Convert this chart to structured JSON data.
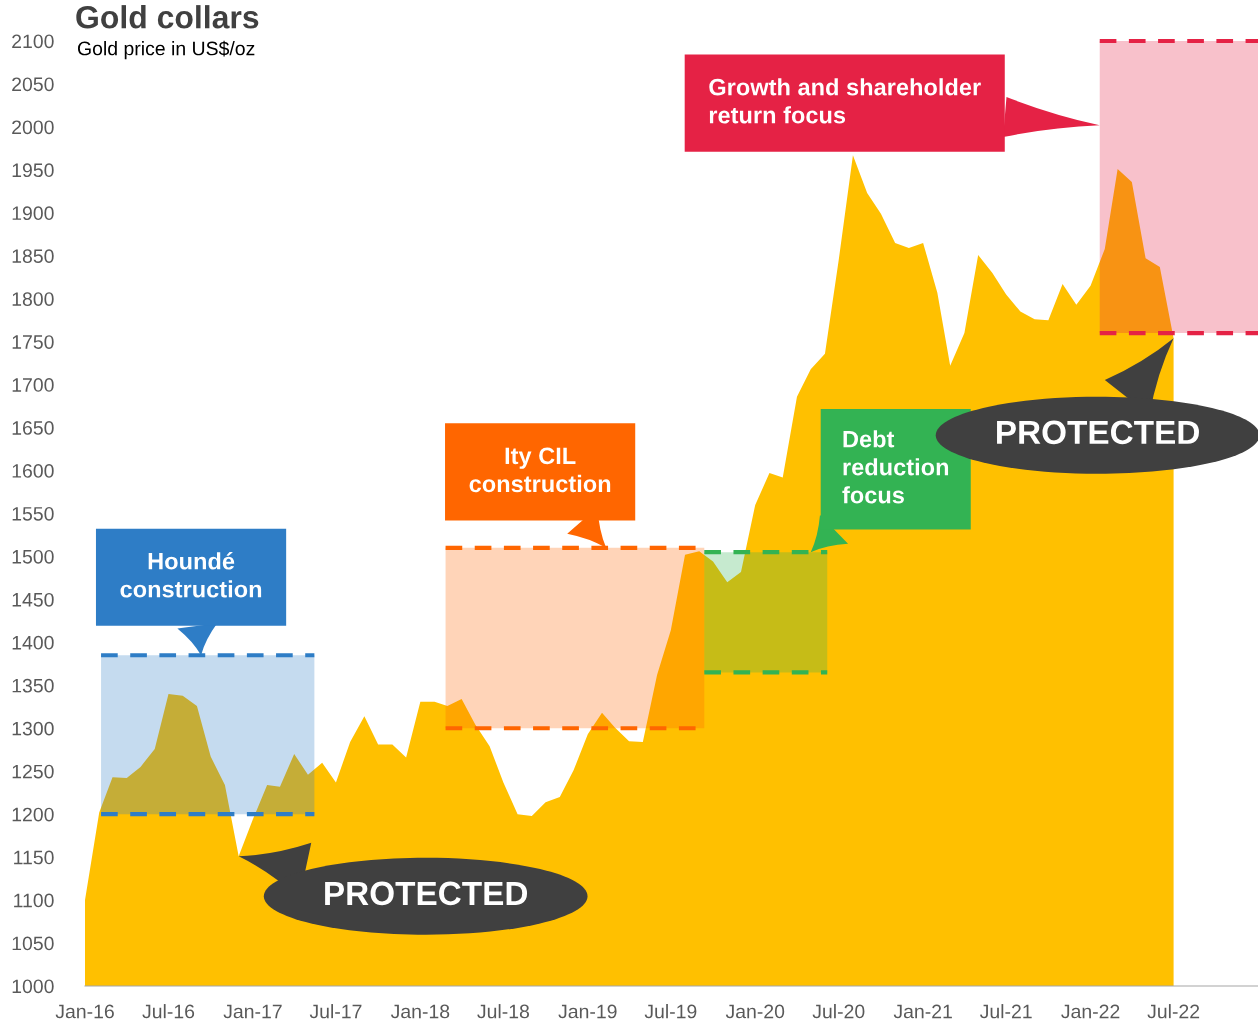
{
  "chart_data": {
    "type": "area",
    "title": "Gold collars",
    "subtitle": "Gold price in US$/oz",
    "line_style": "dashed",
    "x": [
      "2016-01",
      "2016-02",
      "2016-03",
      "2016-04",
      "2016-05",
      "2016-06",
      "2016-07",
      "2016-08",
      "2016-09",
      "2016-10",
      "2016-11",
      "2016-12",
      "2017-01",
      "2017-02",
      "2017-03",
      "2017-04",
      "2017-05",
      "2017-06",
      "2017-07",
      "2017-08",
      "2017-09",
      "2017-10",
      "2017-11",
      "2017-12",
      "2018-01",
      "2018-02",
      "2018-03",
      "2018-04",
      "2018-05",
      "2018-06",
      "2018-07",
      "2018-08",
      "2018-09",
      "2018-10",
      "2018-11",
      "2018-12",
      "2019-01",
      "2019-02",
      "2019-03",
      "2019-04",
      "2019-05",
      "2019-06",
      "2019-07",
      "2019-08",
      "2019-09",
      "2019-10",
      "2019-11",
      "2019-12",
      "2020-01",
      "2020-02",
      "2020-03",
      "2020-04",
      "2020-05",
      "2020-06",
      "2020-07",
      "2020-08",
      "2020-09",
      "2020-10",
      "2020-11",
      "2020-12",
      "2021-01",
      "2021-02",
      "2021-03",
      "2021-04",
      "2021-05",
      "2021-06",
      "2021-07",
      "2021-08",
      "2021-09",
      "2021-10",
      "2021-11",
      "2021-12",
      "2022-01",
      "2022-02",
      "2022-03",
      "2022-04",
      "2022-05",
      "2022-06",
      "2022-07"
    ],
    "series": [
      {
        "color": "#ffc000",
        "values": [
          1100,
          1202,
          1243,
          1242,
          1255,
          1276,
          1340,
          1338,
          1326,
          1267,
          1234,
          1151,
          1194,
          1234,
          1232,
          1270,
          1246,
          1260,
          1237,
          1284,
          1314,
          1281,
          1281,
          1266,
          1331,
          1331,
          1326,
          1334,
          1304,
          1279,
          1237,
          1200,
          1198,
          1214,
          1220,
          1251,
          1293,
          1318,
          1301,
          1285,
          1284,
          1362,
          1414,
          1502,
          1506,
          1494,
          1470,
          1482,
          1560,
          1597,
          1592,
          1686,
          1718,
          1736,
          1845,
          1967,
          1923,
          1899,
          1865,
          1859,
          1865,
          1807,
          1722,
          1760,
          1851,
          1830,
          1805,
          1785,
          1776,
          1775,
          1817,
          1793,
          1815,
          1858,
          1951,
          1936,
          1847,
          1837,
          1754
        ]
      },
      {
        "type": "line",
        "color": "#2e7dc6",
        "x": [
          "2016-02-05",
          "2017-05-15"
        ],
        "values": [
          1385,
          1385
        ],
        "lower": [
          1200,
          1200
        ],
        "upper": [
          1385,
          1385
        ]
      },
      {
        "type": "line",
        "color": "#2e7dc6",
        "x": [
          "2016-02-05",
          "2017-05-15"
        ],
        "values": [
          1200,
          1200
        ]
      },
      {
        "type": "line",
        "color": "#ff6600",
        "x": [
          "2018-02-25",
          "2019-09-12"
        ],
        "values": [
          1510,
          1510
        ],
        "lower": [
          1300,
          1300
        ],
        "upper": [
          1510,
          1510
        ]
      },
      {
        "type": "line",
        "color": "#ff6600",
        "x": [
          "2018-02-25",
          "2019-09-12"
        ],
        "values": [
          1300,
          1300
        ]
      },
      {
        "type": "line",
        "color": "#33b353",
        "x": [
          "2019-09-12",
          "2020-06-06"
        ],
        "values": [
          1505,
          1505
        ],
        "lower": [
          1365,
          1365
        ],
        "upper": [
          1505,
          1505
        ]
      },
      {
        "type": "line",
        "color": "#33b353",
        "x": [
          "2019-09-12",
          "2020-06-06"
        ],
        "values": [
          1365,
          1365
        ]
      },
      {
        "type": "line",
        "color": "#e52245",
        "x": [
          "2022-01-21",
          "2023-01"
        ],
        "values": [
          2100,
          2100
        ],
        "lower": [
          1760,
          1760
        ],
        "upper": [
          2100,
          2100
        ]
      },
      {
        "type": "line",
        "color": "#e52245",
        "x": [
          "2022-01-21",
          "2023-01"
        ],
        "values": [
          1760,
          1760
        ]
      }
    ],
    "xlim": [
      "2016-01",
      "2023-01"
    ],
    "xticks": [
      {
        "value": "2016-01",
        "label": "Jan-16"
      },
      {
        "value": "2016-07",
        "label": "Jul-16"
      },
      {
        "value": "2017-01",
        "label": "Jan-17"
      },
      {
        "value": "2017-07",
        "label": "Jul-17"
      },
      {
        "value": "2018-01",
        "label": "Jan-18"
      },
      {
        "value": "2018-07",
        "label": "Jul-18"
      },
      {
        "value": "2019-01",
        "label": "Jan-19"
      },
      {
        "value": "2019-07",
        "label": "Jul-19"
      },
      {
        "value": "2020-01",
        "label": "Jan-20"
      },
      {
        "value": "2020-07",
        "label": "Jul-20"
      },
      {
        "value": "2021-01",
        "label": "Jan-21"
      },
      {
        "value": "2021-07",
        "label": "Jul-21"
      },
      {
        "value": "2022-01",
        "label": "Jan-22"
      },
      {
        "value": "2022-07",
        "label": "Jul-22"
      }
    ],
    "ylim": [
      1000,
      2100
    ],
    "yticks": [
      1000,
      1050,
      1100,
      1150,
      1200,
      1250,
      1300,
      1350,
      1400,
      1450,
      1500,
      1550,
      1600,
      1650,
      1700,
      1750,
      1800,
      1850,
      1900,
      1950,
      2000,
      2050,
      2100
    ],
    "annotations": [
      {
        "text": "Houndé\nconstruction",
        "x": "2016-09-10",
        "y": 1385
      },
      {
        "text": "Ity CIL\nconstruction",
        "x": "2019-02-10",
        "y": 1510
      },
      {
        "text": "Debt\nreduction\nfocus",
        "x": "2020-05-01",
        "y": 1505
      },
      {
        "text": "Growth and shareholder\nreturn focus",
        "x": "2022-01-21",
        "y": 2002
      },
      {
        "text": "PROTECTED",
        "x": "2016-12",
        "y": 1151
      },
      {
        "text": "PROTECTED",
        "x": "2022-07",
        "y": 1754
      }
    ]
  }
}
